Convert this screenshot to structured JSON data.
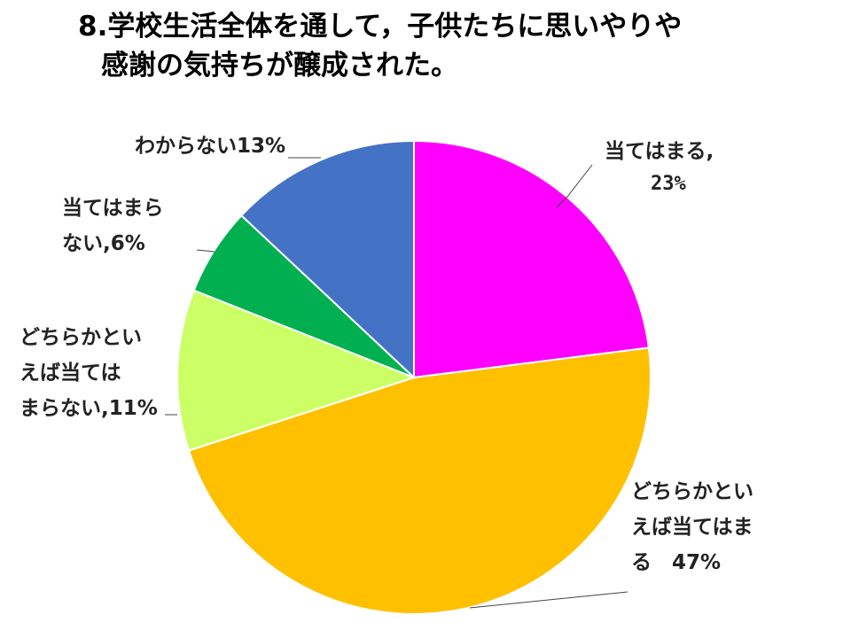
{
  "title": {
    "line1": "8.学校生活全体を通して，子供たちに思いやりや",
    "line2": "感謝の気持ちが醸成された。"
  },
  "chart_data": {
    "type": "pie",
    "title": "8.学校生活全体を通して，子供たちに思いやりや感謝の気持ちが醸成された。",
    "slices": [
      {
        "name": "当てはまる",
        "value": 23,
        "color": "#FF00FF",
        "label_lines": [
          "当てはまる,",
          "23%"
        ]
      },
      {
        "name": "どちらかといえば当てはまる",
        "value": 47,
        "color": "#FFC000",
        "label_lines": [
          "どちらかとい",
          "えば当てはま",
          "る　47%"
        ]
      },
      {
        "name": "どちらかといえば当てはまらない",
        "value": 11,
        "color": "#CCFF66",
        "label_lines": [
          "どちらかとい",
          "えば当ては",
          "まらない,11%"
        ]
      },
      {
        "name": "当てはまらない",
        "value": 6,
        "color": "#00B050",
        "label_lines": [
          "当てはまら",
          "ない,6%"
        ]
      },
      {
        "name": "わからない",
        "value": 13,
        "color": "#4472C4",
        "label_lines": [
          "わからない13%"
        ]
      }
    ],
    "start_angle_deg": 0,
    "direction": "clockwise",
    "legend": "none"
  }
}
